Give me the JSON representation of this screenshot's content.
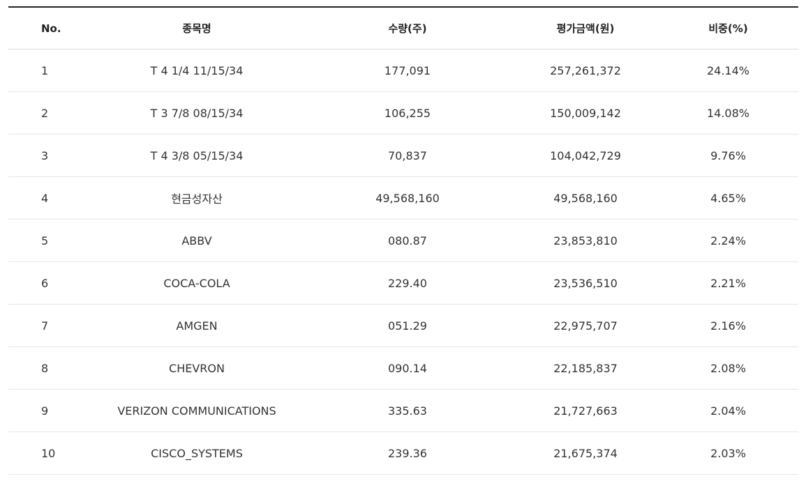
{
  "table": {
    "headers": {
      "no": "No.",
      "name": "종목명",
      "quantity": "수량(주)",
      "value": "평가금액(원)",
      "weight": "비중(%)"
    },
    "rows": [
      {
        "no": "1",
        "name": "T 4 1/4 11/15/34",
        "quantity": "177,091",
        "value": "257,261,372",
        "weight": "24.14%"
      },
      {
        "no": "2",
        "name": "T 3 7/8 08/15/34",
        "quantity": "106,255",
        "value": "150,009,142",
        "weight": "14.08%"
      },
      {
        "no": "3",
        "name": "T 4 3/8 05/15/34",
        "quantity": "70,837",
        "value": "104,042,729",
        "weight": "9.76%"
      },
      {
        "no": "4",
        "name": "현금성자산",
        "quantity": "49,568,160",
        "value": "49,568,160",
        "weight": "4.65%"
      },
      {
        "no": "5",
        "name": "ABBV",
        "quantity": "080.87",
        "value": "23,853,810",
        "weight": "2.24%"
      },
      {
        "no": "6",
        "name": "COCA-COLA",
        "quantity": "229.40",
        "value": "23,536,510",
        "weight": "2.21%"
      },
      {
        "no": "7",
        "name": "AMGEN",
        "quantity": "051.29",
        "value": "22,975,707",
        "weight": "2.16%"
      },
      {
        "no": "8",
        "name": "CHEVRON",
        "quantity": "090.14",
        "value": "22,185,837",
        "weight": "2.08%"
      },
      {
        "no": "9",
        "name": "VERIZON COMMUNICATIONS",
        "quantity": "335.63",
        "value": "21,727,663",
        "weight": "2.04%"
      },
      {
        "no": "10",
        "name": "CISCO_SYSTEMS",
        "quantity": "239.36",
        "value": "21,675,374",
        "weight": "2.03%"
      }
    ]
  }
}
